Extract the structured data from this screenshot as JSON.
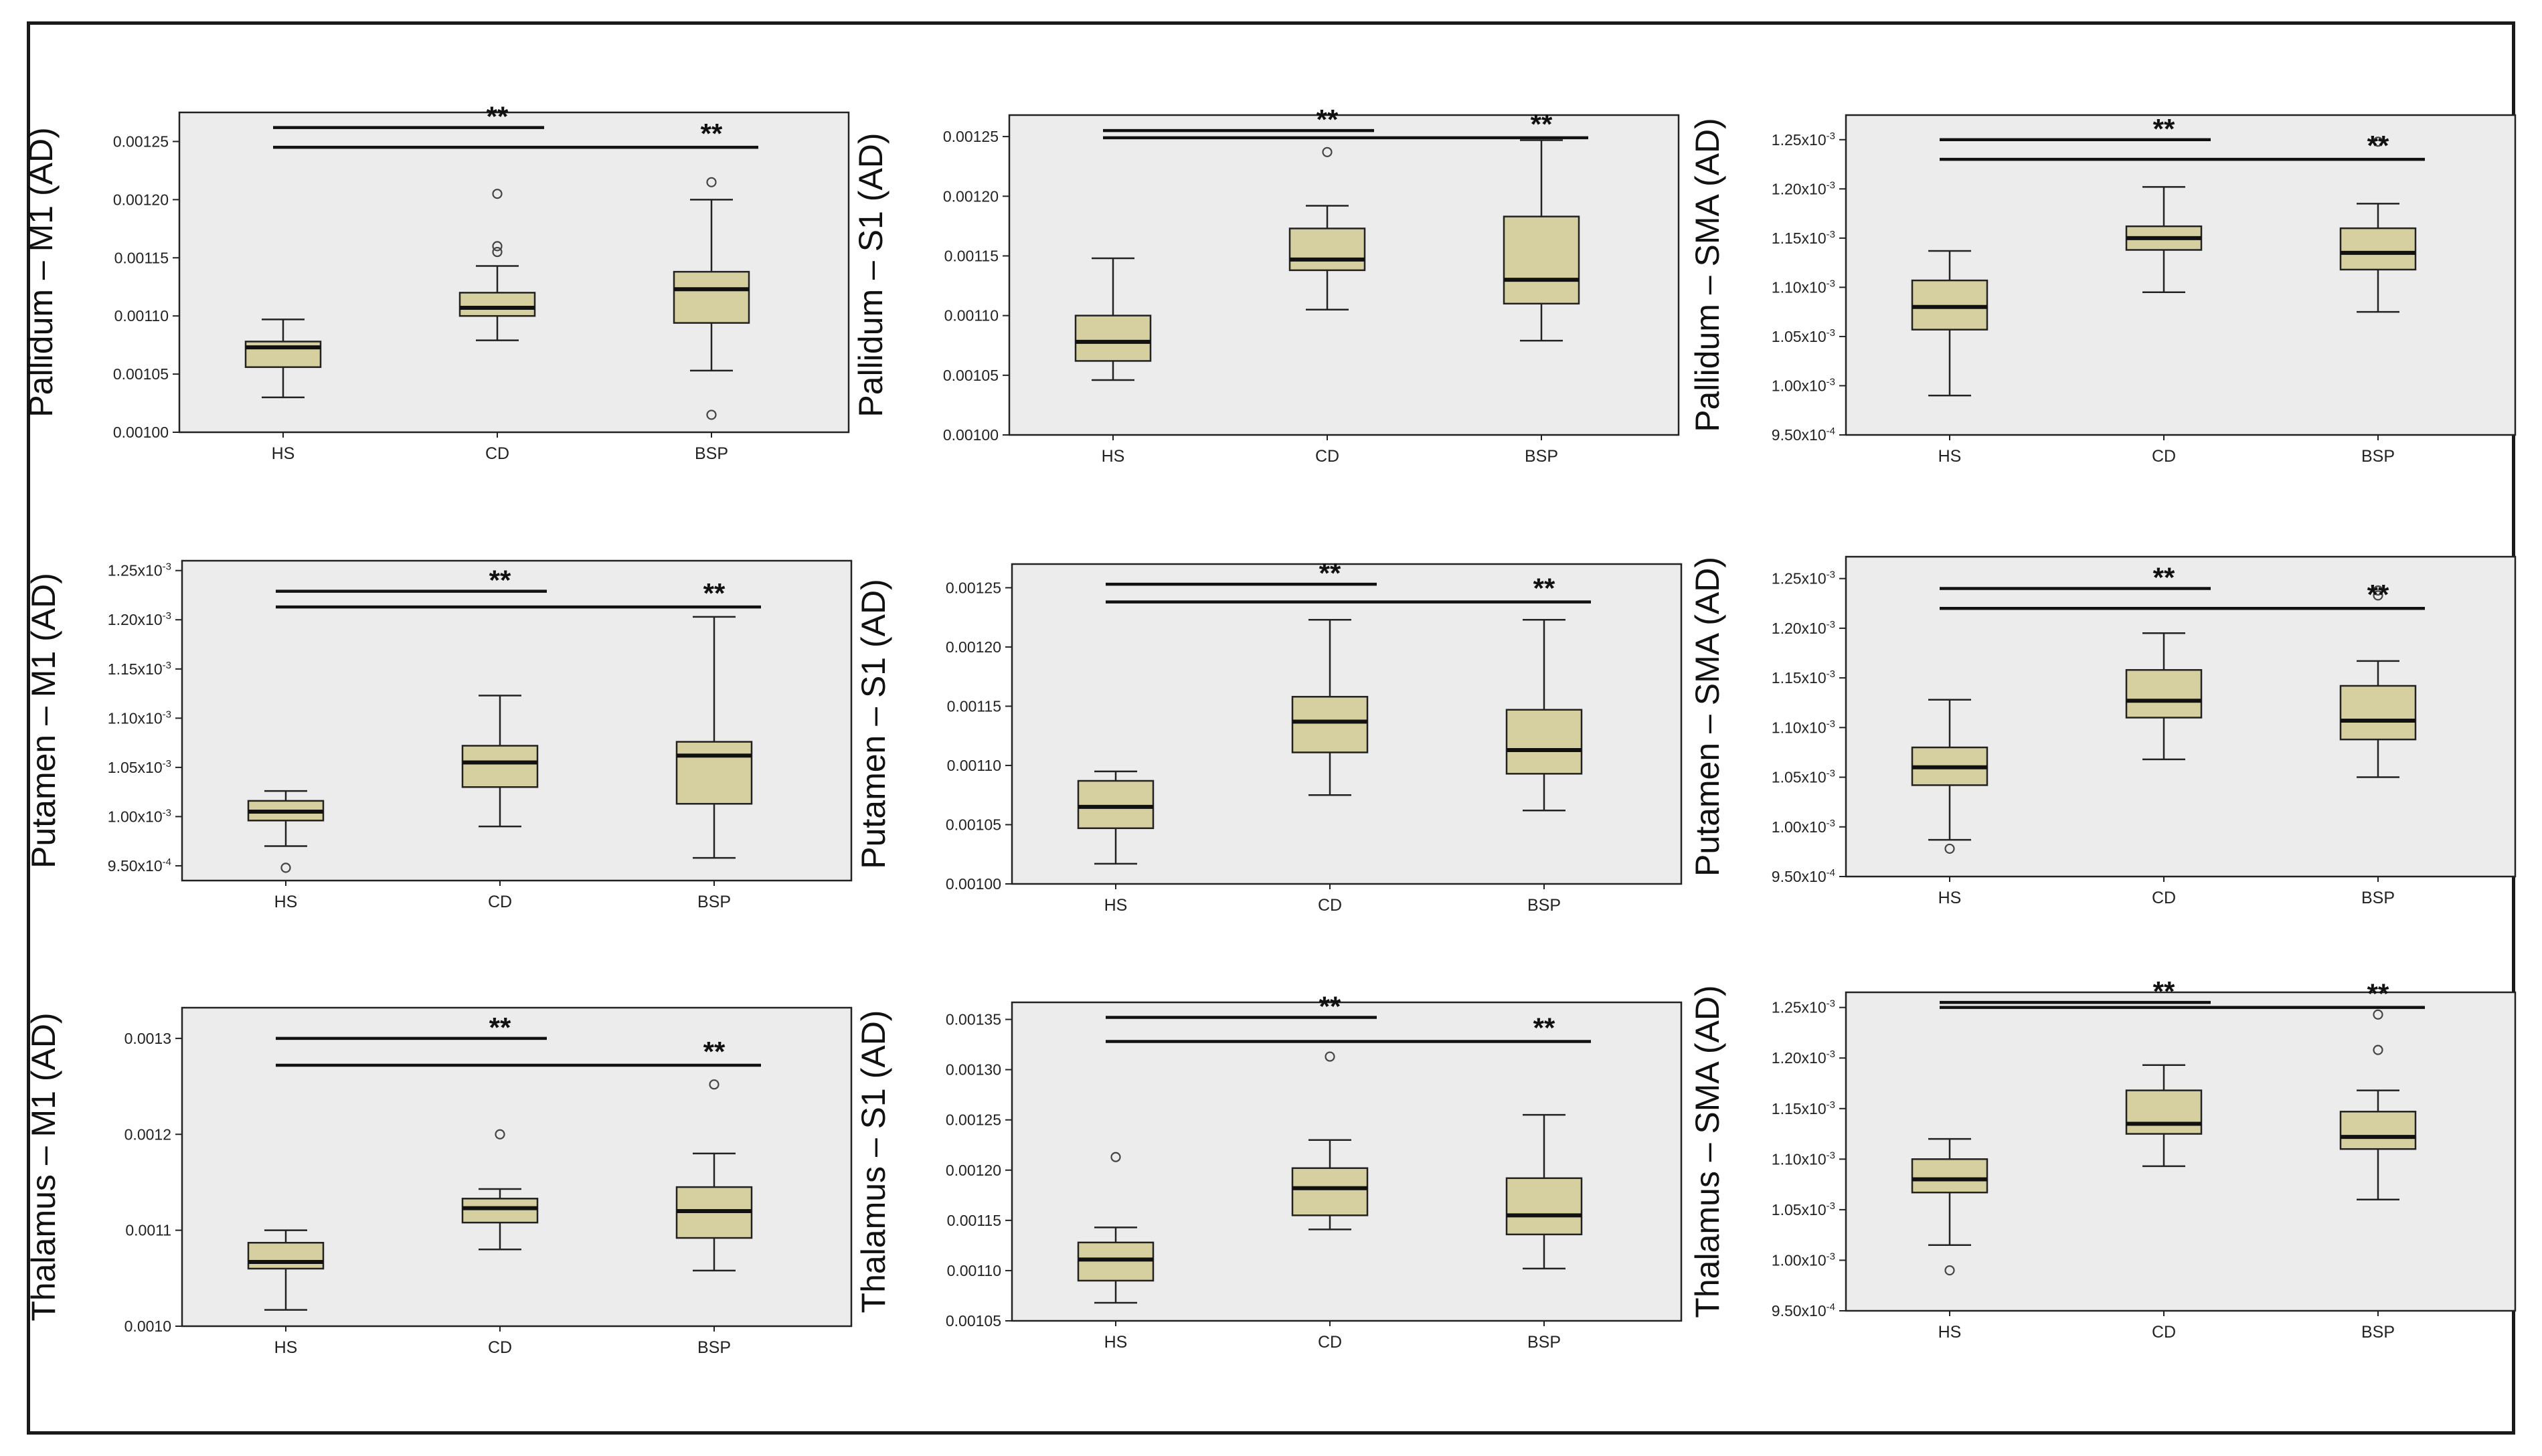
{
  "figure": {
    "group_order": [
      "HS",
      "CD",
      "BSP"
    ],
    "colors": {
      "box_fill": "#d6cf9f",
      "plot_bg": "#ececec",
      "line": "#222222"
    }
  },
  "chart_data": [
    {
      "type": "box",
      "ylabel": "Pallidum – M1 (AD)",
      "ylim": [
        0.001,
        0.001275
      ],
      "yticks": [
        0.001,
        0.00105,
        0.0011,
        0.00115,
        0.0012,
        0.00125
      ],
      "yticklabels": [
        "0.00100",
        "0.00105",
        "0.00110",
        "0.00115",
        "0.00120",
        "0.00125"
      ],
      "categories": [
        "HS",
        "CD",
        "BSP"
      ],
      "boxes": [
        {
          "min": 0.00103,
          "q1": 0.001056,
          "median": 0.001073,
          "q3": 0.001078,
          "max": 0.001097,
          "outliers": []
        },
        {
          "min": 0.001079,
          "q1": 0.0011,
          "median": 0.001107,
          "q3": 0.00112,
          "max": 0.001143,
          "outliers": [
            0.001155,
            0.00116,
            0.001205
          ]
        },
        {
          "min": 0.001053,
          "q1": 0.001094,
          "median": 0.001123,
          "q3": 0.001138,
          "max": 0.0012,
          "outliers": [
            0.001015,
            0.001215
          ]
        }
      ],
      "significance": [
        {
          "from": "HS",
          "to": "CD",
          "label": "**",
          "y": 0.001262
        },
        {
          "from": "HS",
          "to": "BSP",
          "label": "**",
          "y": 0.001245
        }
      ]
    },
    {
      "type": "box",
      "ylabel": "Pallidum – S1 (AD)",
      "ylim": [
        0.001,
        0.001268
      ],
      "yticks": [
        0.001,
        0.00105,
        0.0011,
        0.00115,
        0.0012,
        0.00125
      ],
      "yticklabels": [
        "0.00100",
        "0.00105",
        "0.00110",
        "0.00115",
        "0.00120",
        "0.00125"
      ],
      "categories": [
        "HS",
        "CD",
        "BSP"
      ],
      "boxes": [
        {
          "min": 0.001046,
          "q1": 0.001062,
          "median": 0.001078,
          "q3": 0.0011,
          "max": 0.001148,
          "outliers": []
        },
        {
          "min": 0.001105,
          "q1": 0.001138,
          "median": 0.001147,
          "q3": 0.001173,
          "max": 0.001192,
          "outliers": [
            0.001237
          ]
        },
        {
          "min": 0.001079,
          "q1": 0.00111,
          "median": 0.00113,
          "q3": 0.001183,
          "max": 0.001247,
          "outliers": []
        }
      ],
      "significance": [
        {
          "from": "HS",
          "to": "CD",
          "label": "**",
          "y": 0.001255
        },
        {
          "from": "HS",
          "to": "BSP",
          "label": "**",
          "y": 0.001249
        }
      ]
    },
    {
      "type": "box",
      "ylabel": "Pallidum – SMA (AD)",
      "ylim": [
        0.00095,
        0.001275
      ],
      "yticks": [
        0.00095,
        0.001,
        0.00105,
        0.0011,
        0.00115,
        0.0012,
        0.00125
      ],
      "yticklabels": [
        [
          "9.50x10",
          "-4"
        ],
        [
          "1.00x10",
          "-3"
        ],
        [
          "1.05x10",
          "-3"
        ],
        [
          "1.10x10",
          "-3"
        ],
        [
          "1.15x10",
          "-3"
        ],
        [
          "1.20x10",
          "-3"
        ],
        [
          "1.25x10",
          "-3"
        ]
      ],
      "categories": [
        "HS",
        "CD",
        "BSP"
      ],
      "boxes": [
        {
          "min": 0.00099,
          "q1": 0.001057,
          "median": 0.00108,
          "q3": 0.001107,
          "max": 0.001137,
          "outliers": []
        },
        {
          "min": 0.001095,
          "q1": 0.001138,
          "median": 0.00115,
          "q3": 0.001162,
          "max": 0.001202,
          "outliers": []
        },
        {
          "min": 0.001075,
          "q1": 0.001118,
          "median": 0.001135,
          "q3": 0.00116,
          "max": 0.001185,
          "outliers": [
            0.001248
          ]
        }
      ],
      "significance": [
        {
          "from": "HS",
          "to": "CD",
          "label": "**",
          "y": 0.00125
        },
        {
          "from": "HS",
          "to": "BSP",
          "label": "**",
          "y": 0.00123
        }
      ]
    },
    {
      "type": "box",
      "ylabel": "Putamen – M1 (AD)",
      "ylim": [
        0.000935,
        0.00126
      ],
      "yticks": [
        0.00095,
        0.001,
        0.00105,
        0.0011,
        0.00115,
        0.0012,
        0.00125
      ],
      "yticklabels": [
        [
          "9.50x10",
          "-4"
        ],
        [
          "1.00x10",
          "-3"
        ],
        [
          "1.05x10",
          "-3"
        ],
        [
          "1.10x10",
          "-3"
        ],
        [
          "1.15x10",
          "-3"
        ],
        [
          "1.20x10",
          "-3"
        ],
        [
          "1.25x10",
          "-3"
        ]
      ],
      "categories": [
        "HS",
        "CD",
        "BSP"
      ],
      "boxes": [
        {
          "min": 0.00097,
          "q1": 0.000996,
          "median": 0.001005,
          "q3": 0.001016,
          "max": 0.001026,
          "outliers": [
            0.000948
          ]
        },
        {
          "min": 0.00099,
          "q1": 0.00103,
          "median": 0.001055,
          "q3": 0.001072,
          "max": 0.001123,
          "outliers": []
        },
        {
          "min": 0.000958,
          "q1": 0.001013,
          "median": 0.001062,
          "q3": 0.001076,
          "max": 0.001203,
          "outliers": []
        }
      ],
      "significance": [
        {
          "from": "HS",
          "to": "CD",
          "label": "**",
          "y": 0.001229
        },
        {
          "from": "HS",
          "to": "BSP",
          "label": "**",
          "y": 0.001213
        }
      ]
    },
    {
      "type": "box",
      "ylabel": "Putamen – S1 (AD)",
      "ylim": [
        0.001,
        0.00127
      ],
      "yticks": [
        0.001,
        0.00105,
        0.0011,
        0.00115,
        0.0012,
        0.00125
      ],
      "yticklabels": [
        "0.00100",
        "0.00105",
        "0.00110",
        "0.00115",
        "0.00120",
        "0.00125"
      ],
      "categories": [
        "HS",
        "CD",
        "BSP"
      ],
      "boxes": [
        {
          "min": 0.001017,
          "q1": 0.001047,
          "median": 0.001065,
          "q3": 0.001087,
          "max": 0.001095,
          "outliers": []
        },
        {
          "min": 0.001075,
          "q1": 0.001111,
          "median": 0.001137,
          "q3": 0.001158,
          "max": 0.001223,
          "outliers": []
        },
        {
          "min": 0.001062,
          "q1": 0.001093,
          "median": 0.001113,
          "q3": 0.001147,
          "max": 0.001223,
          "outliers": []
        }
      ],
      "significance": [
        {
          "from": "HS",
          "to": "CD",
          "label": "**",
          "y": 0.001253
        },
        {
          "from": "HS",
          "to": "BSP",
          "label": "**",
          "y": 0.001238
        }
      ]
    },
    {
      "type": "box",
      "ylabel": "Putamen – SMA (AD)",
      "ylim": [
        0.00095,
        0.001272
      ],
      "yticks": [
        0.00095,
        0.001,
        0.00105,
        0.0011,
        0.00115,
        0.0012,
        0.00125
      ],
      "yticklabels": [
        [
          "9.50x10",
          "-4"
        ],
        [
          "1.00x10",
          "-3"
        ],
        [
          "1.05x10",
          "-3"
        ],
        [
          "1.10x10",
          "-3"
        ],
        [
          "1.15x10",
          "-3"
        ],
        [
          "1.20x10",
          "-3"
        ],
        [
          "1.25x10",
          "-3"
        ]
      ],
      "categories": [
        "HS",
        "CD",
        "BSP"
      ],
      "boxes": [
        {
          "min": 0.000987,
          "q1": 0.001042,
          "median": 0.00106,
          "q3": 0.00108,
          "max": 0.001128,
          "outliers": [
            0.000978
          ]
        },
        {
          "min": 0.001068,
          "q1": 0.00111,
          "median": 0.001127,
          "q3": 0.001158,
          "max": 0.001195,
          "outliers": []
        },
        {
          "min": 0.00105,
          "q1": 0.001088,
          "median": 0.001107,
          "q3": 0.001142,
          "max": 0.001167,
          "outliers": [
            0.001233,
            0.001238
          ]
        }
      ],
      "significance": [
        {
          "from": "HS",
          "to": "CD",
          "label": "**",
          "y": 0.00124
        },
        {
          "from": "HS",
          "to": "BSP",
          "label": "**",
          "y": 0.00122
        }
      ]
    },
    {
      "type": "box",
      "ylabel": "Thalamus – M1 (AD)",
      "ylim": [
        0.001,
        0.001332
      ],
      "yticks": [
        0.001,
        0.0011,
        0.0012,
        0.0013
      ],
      "yticklabels": [
        "0.0010",
        "0.0011",
        "0.0012",
        "0.0013"
      ],
      "categories": [
        "HS",
        "CD",
        "BSP"
      ],
      "boxes": [
        {
          "min": 0.001017,
          "q1": 0.00106,
          "median": 0.001067,
          "q3": 0.001087,
          "max": 0.0011,
          "outliers": []
        },
        {
          "min": 0.00108,
          "q1": 0.001108,
          "median": 0.001123,
          "q3": 0.001133,
          "max": 0.001143,
          "outliers": [
            0.0012
          ]
        },
        {
          "min": 0.001058,
          "q1": 0.001092,
          "median": 0.00112,
          "q3": 0.001145,
          "max": 0.00118,
          "outliers": [
            0.001252
          ]
        }
      ],
      "significance": [
        {
          "from": "HS",
          "to": "CD",
          "label": "**",
          "y": 0.0013
        },
        {
          "from": "HS",
          "to": "BSP",
          "label": "**",
          "y": 0.001272
        }
      ]
    },
    {
      "type": "box",
      "ylabel": "Thalamus – S1 (AD)",
      "ylim": [
        0.00105,
        0.001367
      ],
      "yticks": [
        0.00105,
        0.0011,
        0.00115,
        0.0012,
        0.00125,
        0.0013,
        0.00135
      ],
      "yticklabels": [
        "0.00105",
        "0.00110",
        "0.00115",
        "0.00120",
        "0.00125",
        "0.00130",
        "0.00135"
      ],
      "categories": [
        "HS",
        "CD",
        "BSP"
      ],
      "boxes": [
        {
          "min": 0.001068,
          "q1": 0.00109,
          "median": 0.001111,
          "q3": 0.001128,
          "max": 0.001143,
          "outliers": [
            0.001213
          ]
        },
        {
          "min": 0.001141,
          "q1": 0.001155,
          "median": 0.001182,
          "q3": 0.001202,
          "max": 0.00123,
          "outliers": [
            0.001313
          ]
        },
        {
          "min": 0.001102,
          "q1": 0.001136,
          "median": 0.001155,
          "q3": 0.001192,
          "max": 0.001255,
          "outliers": []
        }
      ],
      "significance": [
        {
          "from": "HS",
          "to": "CD",
          "label": "**",
          "y": 0.001352
        },
        {
          "from": "HS",
          "to": "BSP",
          "label": "**",
          "y": 0.001328
        }
      ]
    },
    {
      "type": "box",
      "ylabel": "Thalamus – SMA (AD)",
      "ylim": [
        0.00095,
        0.001265
      ],
      "yticks": [
        0.00095,
        0.001,
        0.00105,
        0.0011,
        0.00115,
        0.0012,
        0.00125
      ],
      "yticklabels": [
        [
          "9.50x10",
          "-4"
        ],
        [
          "1.00x10",
          "-3"
        ],
        [
          "1.05x10",
          "-3"
        ],
        [
          "1.10x10",
          "-3"
        ],
        [
          "1.15x10",
          "-3"
        ],
        [
          "1.20x10",
          "-3"
        ],
        [
          "1.25x10",
          "-3"
        ]
      ],
      "categories": [
        "HS",
        "CD",
        "BSP"
      ],
      "boxes": [
        {
          "min": 0.001015,
          "q1": 0.001067,
          "median": 0.00108,
          "q3": 0.0011,
          "max": 0.00112,
          "outliers": [
            0.00099
          ]
        },
        {
          "min": 0.001093,
          "q1": 0.001125,
          "median": 0.001135,
          "q3": 0.001168,
          "max": 0.001193,
          "outliers": []
        },
        {
          "min": 0.00106,
          "q1": 0.00111,
          "median": 0.001122,
          "q3": 0.001147,
          "max": 0.001168,
          "outliers": [
            0.001208,
            0.001243
          ]
        }
      ],
      "significance": [
        {
          "from": "HS",
          "to": "CD",
          "label": "**",
          "y": 0.001255
        },
        {
          "from": "HS",
          "to": "BSP",
          "label": "**",
          "y": 0.00125
        }
      ]
    }
  ]
}
